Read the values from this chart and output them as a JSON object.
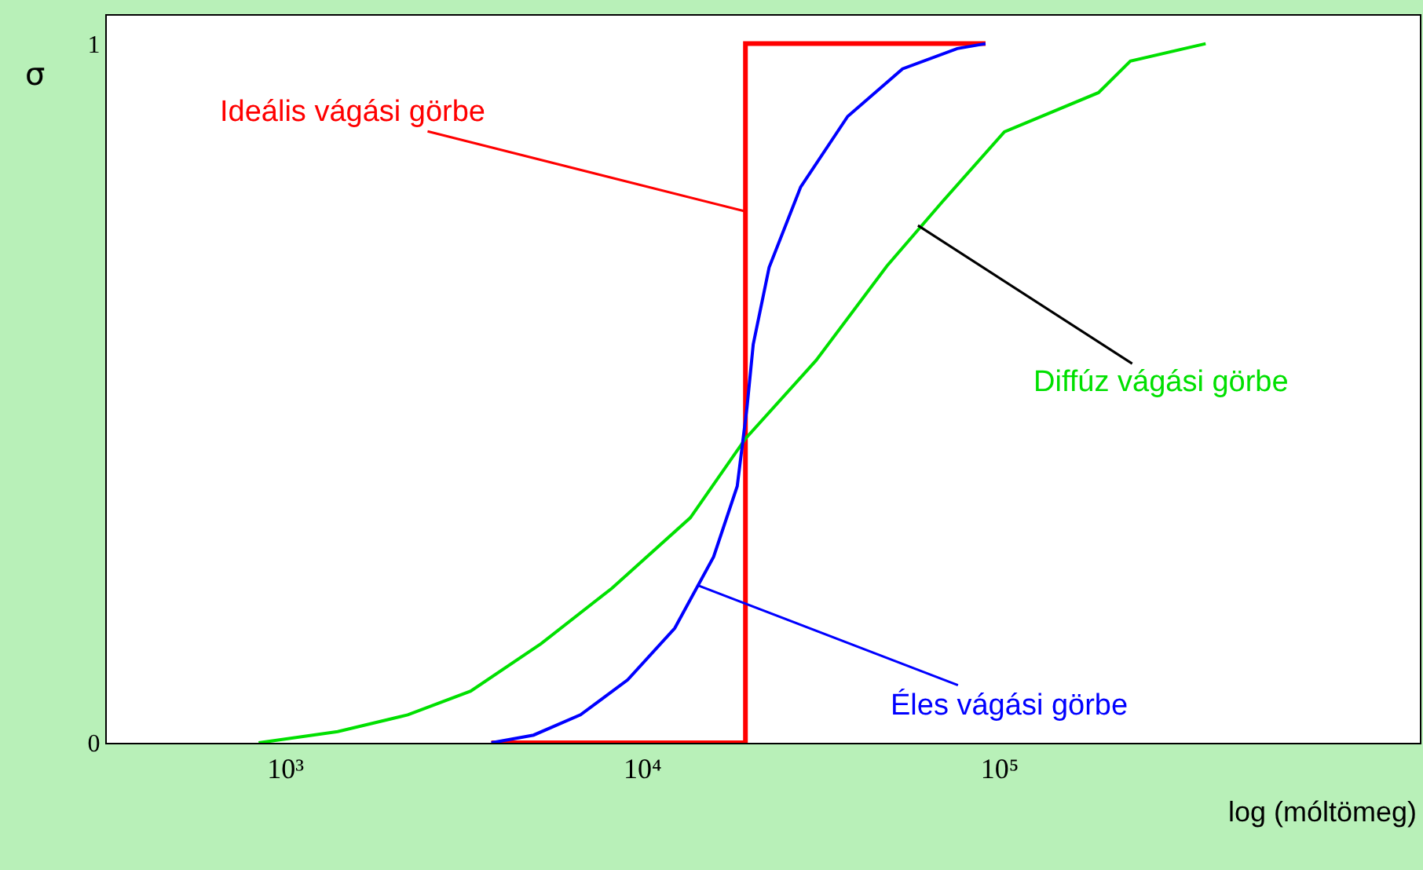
{
  "chart_data": {
    "type": "line",
    "xlabel": "log (móltömeg)",
    "ylabel": "σ",
    "log": "x",
    "xlim": [
      316,
      1500000
    ],
    "ylim": [
      0,
      1.04
    ],
    "xticks": [
      {
        "value": 1000,
        "label": "10³"
      },
      {
        "value": 10000,
        "label": "10⁴"
      },
      {
        "value": 100000,
        "label": "10⁵"
      }
    ],
    "yticks": [
      0,
      1
    ],
    "grid": false,
    "marker": "none",
    "line_style": "solid",
    "series": [
      {
        "color": "#ff0000",
        "x": [
          3770,
          19400,
          19400,
          91200
        ],
        "values": [
          0,
          0,
          1,
          1
        ]
      },
      {
        "color": "#00e000",
        "x": [
          841,
          1400,
          2200,
          3300,
          5200,
          8200,
          13600,
          19400,
          30600,
          48300,
          68800,
          103000,
          189000,
          232000,
          377000
        ],
        "values": [
          0,
          0.016,
          0.04,
          0.074,
          0.142,
          0.221,
          0.322,
          0.435,
          0.547,
          0.682,
          0.773,
          0.874,
          0.93,
          0.975,
          1
        ]
      },
      {
        "color": "#0000ff",
        "x": [
          3770,
          4950,
          6700,
          9080,
          12300,
          15800,
          18400,
          19600,
          20400,
          22600,
          27700,
          37500,
          53400,
          76000,
          91200
        ],
        "values": [
          0,
          0.011,
          0.04,
          0.09,
          0.164,
          0.266,
          0.367,
          0.48,
          0.57,
          0.68,
          0.795,
          0.896,
          0.964,
          0.993,
          1
        ]
      }
    ],
    "annotations": [
      {
        "text": "Ideális vágási görbe",
        "x": 19400,
        "y": 0.76
      },
      {
        "text": "Diffúz vágási görbe",
        "x": 59000,
        "y": 0.74
      },
      {
        "text": "Éles vágási görbe",
        "x": 14300,
        "y": 0.225
      }
    ]
  }
}
